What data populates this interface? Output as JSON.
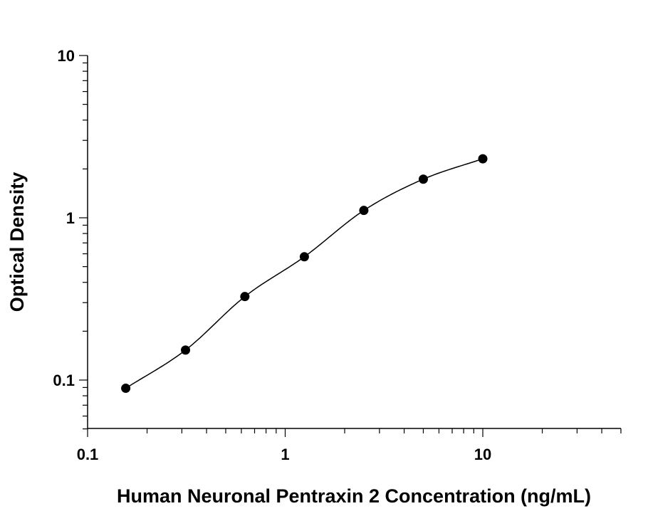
{
  "chart_data": {
    "type": "scatter",
    "title": "",
    "xlabel": "Human Neuronal Pentraxin 2 Concentration (ng/mL)",
    "ylabel": "Optical Density",
    "x_scale": "log",
    "y_scale": "log",
    "xlim": [
      0.1,
      50
    ],
    "ylim": [
      0.05,
      10
    ],
    "x_tick_labels": [
      {
        "value": 0.1,
        "label": "0.1"
      },
      {
        "value": 1,
        "label": "1"
      },
      {
        "value": 10,
        "label": "10"
      }
    ],
    "y_tick_labels": [
      {
        "value": 0.1,
        "label": "0.1"
      },
      {
        "value": 1,
        "label": "1"
      },
      {
        "value": 10,
        "label": "10"
      }
    ],
    "grid": false,
    "legend": "none",
    "series": [
      {
        "marker": "filled-circle",
        "color": "#000000",
        "x": [
          0.156,
          0.313,
          0.625,
          1.25,
          2.5,
          5,
          10
        ],
        "y": [
          0.089,
          0.153,
          0.327,
          0.575,
          1.11,
          1.73,
          2.31
        ]
      }
    ],
    "fit_curve": {
      "type": "four-parameter-logistic",
      "color": "#000000",
      "x_range": [
        0.156,
        10
      ]
    }
  }
}
